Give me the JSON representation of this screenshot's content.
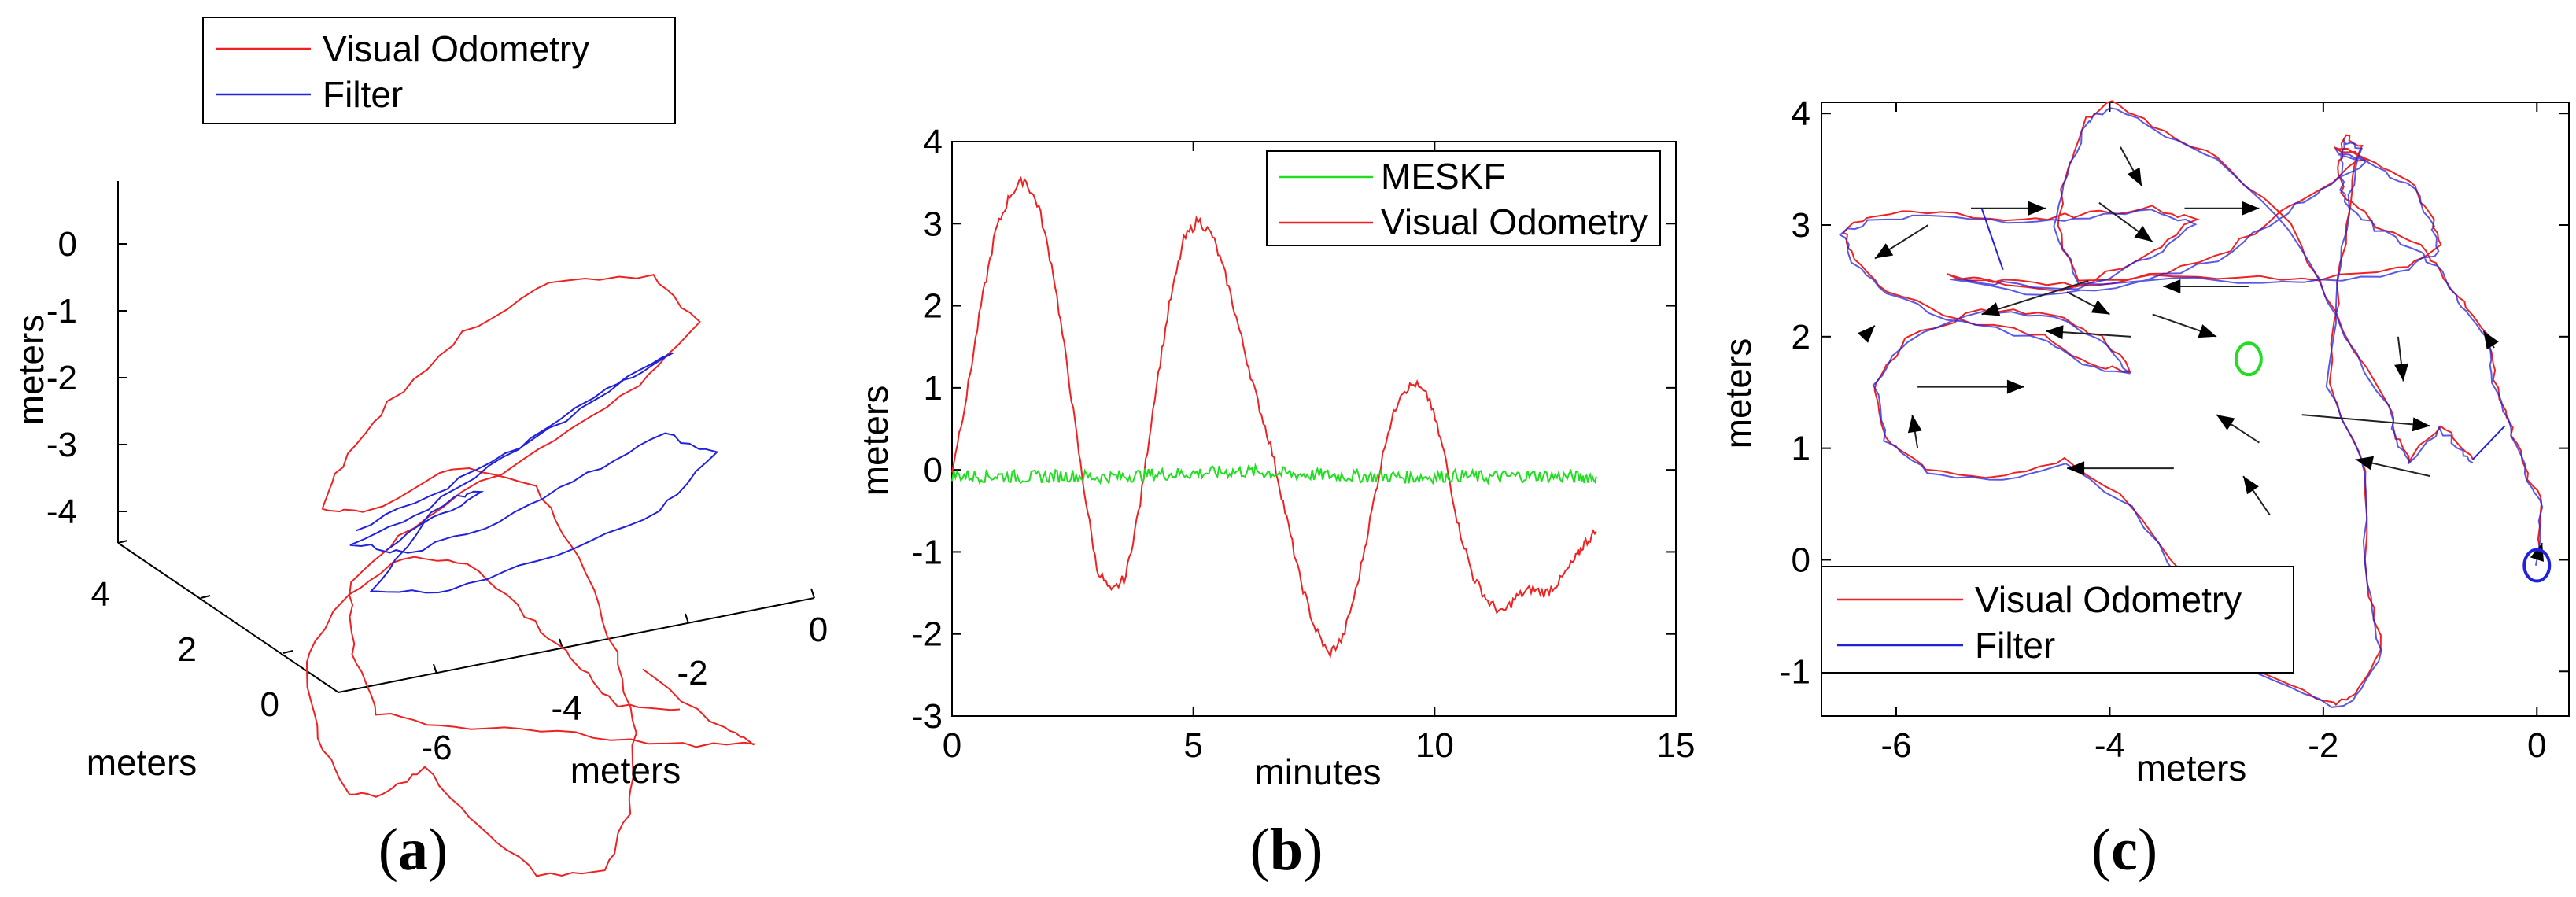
{
  "figure": {
    "captions": [
      "(a)",
      "(b)",
      "(c)"
    ]
  },
  "colors": {
    "red": "#ee2222",
    "blue": "#2222dd",
    "green": "#22dd22",
    "black": "#000000",
    "arrow": "#222222"
  },
  "chart_data": [
    {
      "id": "a",
      "type": "line",
      "projection": "3d",
      "title": "",
      "xlabel": "meters",
      "ylabel": "meters",
      "zlabel": "meters",
      "xlim": [
        -7,
        0.8
      ],
      "ylim": [
        -0.3,
        4.3
      ],
      "zlim": [
        -4.3,
        0.7
      ],
      "x_ticks": [
        "0",
        "-2",
        "-4",
        "-6"
      ],
      "y_ticks": [
        "4",
        "2",
        "0"
      ],
      "z_ticks": [
        "0",
        "-1",
        "-2",
        "-3",
        "-4"
      ],
      "legend": {
        "position": "top",
        "entries": [
          "Visual Odometry",
          "Filter"
        ]
      },
      "series": [
        {
          "name": "Visual Odometry",
          "color": "red",
          "points": [
            [
              -2.4,
              0.6,
              -1.8
            ],
            [
              -1.2,
              0.5,
              -2.6
            ],
            [
              -0.6,
              1.2,
              -3.2
            ],
            [
              -1.8,
              1.8,
              -3.4
            ],
            [
              -3.4,
              2.2,
              -3.3
            ],
            [
              -5.0,
              2.0,
              -3.0
            ],
            [
              -6.2,
              1.6,
              -2.5
            ],
            [
              -6.6,
              1.3,
              -1.6
            ],
            [
              -6.6,
              1.5,
              -0.8
            ],
            [
              -5.4,
              2.0,
              -0.4
            ],
            [
              -3.6,
              2.6,
              -0.1
            ],
            [
              -2.0,
              3.2,
              0.2
            ],
            [
              -1.0,
              3.8,
              0.6
            ],
            [
              -1.6,
              4.2,
              1.0
            ],
            [
              -3.2,
              4.0,
              1.2
            ],
            [
              -4.6,
              3.4,
              1.0
            ],
            [
              -5.8,
              2.8,
              0.6
            ],
            [
              -6.6,
              2.4,
              0.1
            ],
            [
              -6.9,
              2.4,
              -0.4
            ],
            [
              -6.1,
              2.6,
              -0.6
            ],
            [
              -4.8,
              3.0,
              -0.4
            ],
            [
              -3.6,
              3.0,
              -0.7
            ],
            [
              -3.0,
              2.5,
              -1.4
            ],
            [
              -2.6,
              1.8,
              -2.2
            ],
            [
              -2.4,
              1.2,
              -2.9
            ],
            [
              -2.6,
              0.7,
              -3.6
            ],
            [
              -3.0,
              0.4,
              -4.1
            ],
            [
              -4.0,
              0.3,
              -4.0
            ],
            [
              -4.9,
              0.5,
              -3.4
            ],
            [
              -5.6,
              1.0,
              -2.9
            ],
            [
              -6.0,
              1.8,
              -3.6
            ],
            [
              -6.4,
              2.6,
              -4.0
            ],
            [
              -6.8,
              3.2,
              -3.6
            ],
            [
              -6.9,
              3.7,
              -2.9
            ],
            [
              -6.3,
              4.0,
              -2.4
            ],
            [
              -5.4,
              4.1,
              -2.0
            ],
            [
              -4.4,
              4.0,
              -2.1
            ],
            [
              -3.6,
              3.6,
              -2.6
            ],
            [
              -3.0,
              3.2,
              -3.0
            ],
            [
              -2.4,
              2.6,
              -3.3
            ],
            [
              -1.6,
              2.0,
              -3.1
            ]
          ]
        },
        {
          "name": "Filter",
          "color": "blue",
          "points": [
            [
              -6.4,
              2.4,
              -0.7
            ],
            [
              -5.0,
              2.6,
              -0.4
            ],
            [
              -3.6,
              2.9,
              -0.1
            ],
            [
              -2.2,
              3.4,
              0.2
            ],
            [
              -1.4,
              3.7,
              0.3
            ],
            [
              -2.4,
              3.6,
              0.0
            ],
            [
              -3.8,
              3.3,
              -0.4
            ],
            [
              -5.2,
              2.9,
              -0.8
            ],
            [
              -6.4,
              2.7,
              -1.0
            ],
            [
              -5.6,
              2.5,
              -1.1
            ],
            [
              -4.2,
              2.6,
              -0.9
            ],
            [
              -2.8,
              2.9,
              -0.6
            ],
            [
              -1.6,
              3.2,
              -0.4
            ],
            [
              -0.9,
              3.0,
              -0.6
            ],
            [
              -1.8,
              2.6,
              -1.0
            ],
            [
              -3.4,
              2.3,
              -1.2
            ],
            [
              -5.0,
              2.1,
              -1.4
            ],
            [
              -6.2,
              2.1,
              -1.3
            ],
            [
              -5.4,
              2.2,
              -0.6
            ],
            [
              -4.6,
              2.0,
              -0.2
            ],
            [
              -5.0,
              1.8,
              -0.1
            ],
            [
              -6.0,
              1.9,
              -0.7
            ]
          ]
        }
      ]
    },
    {
      "id": "b",
      "type": "line",
      "title": "",
      "xlabel": "minutes",
      "ylabel": "meters",
      "xlim": [
        0,
        15
      ],
      "ylim": [
        -3,
        4
      ],
      "x_ticks": [
        "0",
        "5",
        "10",
        "15"
      ],
      "y_ticks": [
        "4",
        "3",
        "2",
        "1",
        "0",
        "-1",
        "-2",
        "-3"
      ],
      "legend": {
        "position": "top-right",
        "entries": [
          "MESKF",
          "Visual Odometry"
        ]
      },
      "series": [
        {
          "name": "MESKF",
          "color": "green",
          "x": [
            0,
            0.5,
            1,
            1.5,
            2,
            2.5,
            3,
            3.5,
            4,
            4.5,
            5,
            5.5,
            6,
            6.5,
            7,
            7.5,
            8,
            8.5,
            9,
            9.5,
            10,
            10.5,
            11,
            11.5,
            12,
            12.5,
            13,
            13.35
          ],
          "y": [
            -0.06,
            -0.08,
            -0.07,
            -0.09,
            -0.08,
            -0.07,
            -0.09,
            -0.08,
            -0.06,
            -0.05,
            -0.04,
            -0.03,
            -0.02,
            -0.03,
            -0.05,
            -0.06,
            -0.07,
            -0.08,
            -0.08,
            -0.09,
            -0.08,
            -0.07,
            -0.09,
            -0.08,
            -0.07,
            -0.08,
            -0.09,
            -0.08
          ]
        },
        {
          "name": "Visual Odometry",
          "color": "red",
          "x": [
            0,
            0.3,
            0.6,
            0.9,
            1.2,
            1.5,
            1.8,
            2.1,
            2.4,
            2.7,
            3.0,
            3.3,
            3.6,
            3.9,
            4.2,
            4.5,
            4.8,
            5.1,
            5.4,
            5.7,
            6.0,
            6.3,
            6.6,
            6.9,
            7.2,
            7.5,
            7.8,
            8.1,
            8.4,
            8.7,
            9.0,
            9.3,
            9.6,
            9.9,
            10.2,
            10.5,
            10.8,
            11.1,
            11.4,
            11.7,
            12.0,
            12.3,
            12.6,
            12.9,
            13.1,
            13.35
          ],
          "y": [
            0.0,
            0.9,
            2.0,
            2.9,
            3.35,
            3.55,
            3.2,
            2.4,
            1.2,
            -0.1,
            -1.2,
            -1.5,
            -1.3,
            -0.4,
            0.9,
            2.0,
            2.8,
            3.05,
            2.85,
            2.3,
            1.6,
            0.9,
            0.3,
            -0.5,
            -1.3,
            -1.9,
            -2.25,
            -2.05,
            -1.4,
            -0.5,
            0.4,
            0.95,
            1.05,
            0.85,
            0.2,
            -0.7,
            -1.3,
            -1.6,
            -1.75,
            -1.55,
            -1.45,
            -1.5,
            -1.35,
            -1.1,
            -0.9,
            -0.75
          ]
        }
      ]
    },
    {
      "id": "c",
      "type": "line",
      "title": "",
      "xlabel": "meters",
      "ylabel": "meters",
      "xlim": [
        -6.7,
        0.3
      ],
      "ylim": [
        -1.4,
        4.1
      ],
      "x_ticks": [
        "-6",
        "-4",
        "-2",
        "0"
      ],
      "y_ticks": [
        "4",
        "3",
        "2",
        "1",
        "0",
        "-1"
      ],
      "legend": {
        "position": "bottom-left",
        "entries": [
          "Visual Odometry",
          "Filter"
        ]
      },
      "markers": [
        {
          "name": "start",
          "x": -2.7,
          "y": 1.8,
          "color": "green"
        },
        {
          "name": "end",
          "x": 0.0,
          "y": -0.05,
          "color": "blue"
        }
      ],
      "series": [
        {
          "name": "Visual Odometry",
          "color": "red",
          "x": [
            0.0,
            0.05,
            -0.1,
            -0.25,
            -0.4,
            -0.45,
            -0.7,
            -0.9,
            -1.1,
            -1.5,
            -1.8,
            -1.85,
            -1.8,
            -1.65,
            -1.75,
            -1.85,
            -1.95,
            -1.6,
            -1.6,
            -1.45,
            -1.7,
            -1.9,
            -2.6,
            -3.2,
            -3.8,
            -4.4,
            -5.0,
            -5.7,
            -6.1,
            -6.2,
            -5.9,
            -5.2,
            -4.5,
            -4.1,
            -3.8,
            -4.2,
            -4.6,
            -5.4,
            -6.1,
            -6.4,
            -6.5,
            -6.2,
            -5.6,
            -4.8,
            -4.2,
            -3.6,
            -3.2,
            -3.6,
            -4.3,
            -5.0,
            -5.5,
            -4.6,
            -3.8,
            -3.0,
            -2.4,
            -2.0,
            -1.6,
            -1.9,
            -1.6,
            -1.2,
            -1.0,
            -0.9,
            -1.3,
            -2.2,
            -3.2,
            -4.3,
            -4.5,
            -4.4,
            -4.2,
            -4.0,
            -3.6,
            -3.0,
            -2.3,
            -1.9,
            -1.4,
            -1.3,
            -1.2,
            -0.9,
            -0.7,
            -0.6
          ],
          "y": [
            0.0,
            0.5,
            0.8,
            1.2,
            1.6,
            2.0,
            2.3,
            2.6,
            2.8,
            3.0,
            3.25,
            3.5,
            3.8,
            3.7,
            3.3,
            2.5,
            1.6,
            0.8,
            -0.2,
            -0.8,
            -1.2,
            -1.3,
            -1.0,
            -0.3,
            0.5,
            0.9,
            0.75,
            0.8,
            1.1,
            1.6,
            2.0,
            2.25,
            2.2,
            2.0,
            1.7,
            1.75,
            2.0,
            2.15,
            2.4,
            2.7,
            2.95,
            3.1,
            3.1,
            3.05,
            3.1,
            3.15,
            3.05,
            2.75,
            2.45,
            2.5,
            2.55,
            2.4,
            2.5,
            2.7,
            3.1,
            3.35,
            3.6,
            3.7,
            3.6,
            3.4,
            3.1,
            2.8,
            2.6,
            2.5,
            2.55,
            2.5,
            3.0,
            3.5,
            3.95,
            4.1,
            3.9,
            3.6,
            3.0,
            2.2,
            1.4,
            1.1,
            0.9,
            1.2,
            1.0,
            0.9
          ]
        },
        {
          "name": "Filter",
          "color": "blue",
          "x": [
            0.0,
            0.05,
            -0.1,
            -0.25,
            -0.4,
            -0.45,
            -0.7,
            -0.9,
            -1.1,
            -1.5,
            -1.8,
            -1.85,
            -1.8,
            -1.65,
            -1.75,
            -1.85,
            -1.95,
            -1.6,
            -1.6,
            -1.45,
            -1.7,
            -1.9,
            -2.6,
            -3.2,
            -3.8,
            -4.4,
            -5.0,
            -5.7,
            -6.1,
            -6.2,
            -5.9,
            -5.2,
            -4.5,
            -4.1,
            -3.8,
            -4.2,
            -4.6,
            -5.4,
            -6.1,
            -6.4,
            -6.5,
            -6.2,
            -5.6,
            -4.8,
            -4.2,
            -3.6,
            -3.2,
            -3.6,
            -4.3,
            -5.0,
            -5.5,
            -4.6,
            -3.8,
            -3.0,
            -2.4,
            -2.0,
            -1.6,
            -1.9,
            -1.6,
            -1.2,
            -1.0,
            -0.9,
            -1.3,
            -2.2,
            -3.2,
            -4.3,
            -4.5,
            -4.4,
            -4.2,
            -4.0,
            -3.6,
            -3.0,
            -2.3,
            -1.9,
            -1.4,
            -1.3,
            -1.2,
            -0.9,
            -0.7,
            -0.6
          ],
          "y": [
            -0.03,
            0.47,
            0.77,
            1.17,
            1.57,
            1.97,
            2.27,
            2.57,
            2.77,
            2.97,
            3.22,
            3.47,
            3.77,
            3.67,
            3.27,
            2.47,
            1.57,
            0.77,
            -0.23,
            -0.83,
            -1.23,
            -1.33,
            -1.03,
            -0.33,
            0.47,
            0.87,
            0.72,
            0.77,
            1.07,
            1.57,
            1.97,
            2.22,
            2.17,
            1.97,
            1.67,
            1.72,
            1.97,
            2.12,
            2.37,
            2.67,
            2.92,
            3.07,
            3.07,
            3.02,
            3.07,
            3.12,
            3.02,
            2.72,
            2.42,
            2.47,
            2.52,
            2.37,
            2.47,
            2.67,
            3.07,
            3.32,
            3.57,
            3.67,
            3.57,
            3.37,
            3.07,
            2.77,
            2.57,
            2.47,
            2.52,
            2.47,
            2.97,
            3.47,
            3.92,
            4.07,
            3.87,
            3.57,
            2.97,
            2.17,
            1.37,
            1.07,
            0.87,
            1.17,
            0.97,
            0.87
          ]
        }
      ],
      "arrows": [
        {
          "x1": -5.3,
          "y1": 3.15,
          "x2": -4.6,
          "y2": 3.15
        },
        {
          "x1": -3.3,
          "y1": 3.15,
          "x2": -2.6,
          "y2": 3.15
        },
        {
          "x1": -4.1,
          "y1": 3.2,
          "x2": -3.6,
          "y2": 2.85
        },
        {
          "x1": -5.7,
          "y1": 3.0,
          "x2": -6.2,
          "y2": 2.7
        },
        {
          "x1": -2.7,
          "y1": 2.45,
          "x2": -3.5,
          "y2": 2.45
        },
        {
          "x1": -4.2,
          "y1": 2.5,
          "x2": -5.2,
          "y2": 2.2
        },
        {
          "x1": -4.4,
          "y1": 2.4,
          "x2": -4.0,
          "y2": 2.2
        },
        {
          "x1": -3.6,
          "y1": 2.2,
          "x2": -3.0,
          "y2": 2.0
        },
        {
          "x1": -3.8,
          "y1": 2.0,
          "x2": -4.6,
          "y2": 2.05
        },
        {
          "x1": -5.8,
          "y1": 1.55,
          "x2": -4.8,
          "y2": 1.55
        },
        {
          "x1": -2.2,
          "y1": 1.3,
          "x2": -1.0,
          "y2": 1.2
        },
        {
          "x1": -2.6,
          "y1": 1.05,
          "x2": -3.0,
          "y2": 1.3
        },
        {
          "x1": -3.4,
          "y1": 0.82,
          "x2": -4.4,
          "y2": 0.82
        },
        {
          "x1": -1.0,
          "y1": 0.75,
          "x2": -1.7,
          "y2": 0.9
        },
        {
          "x1": -3.9,
          "y1": 3.7,
          "x2": -3.7,
          "y2": 3.35
        },
        {
          "x1": -2.5,
          "y1": 0.4,
          "x2": -2.75,
          "y2": 0.75
        },
        {
          "x1": -1.3,
          "y1": 2.0,
          "x2": -1.25,
          "y2": 1.6
        },
        {
          "x1": -6.3,
          "y1": 2.0,
          "x2": -6.2,
          "y2": 2.1
        },
        {
          "x1": -5.8,
          "y1": 1.0,
          "x2": -5.85,
          "y2": 1.3
        },
        {
          "x1": -0.4,
          "y1": 1.9,
          "x2": -0.5,
          "y2": 2.05
        },
        {
          "x1": 0.0,
          "y1": 0.0,
          "x2": 0.05,
          "y2": 0.15
        }
      ]
    }
  ]
}
